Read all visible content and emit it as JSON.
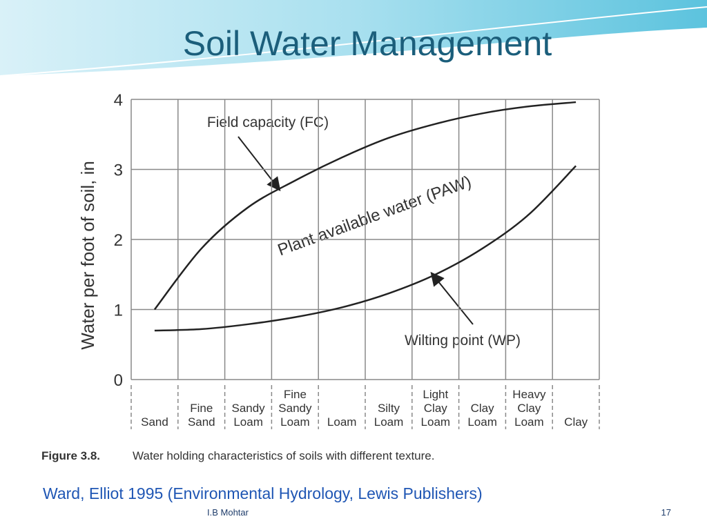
{
  "slide": {
    "title": "Soil Water Management",
    "citation": "Ward, Elliot 1995 (Environmental Hydrology, Lewis Publishers)",
    "author": "I.B Mohtar",
    "page_number": "17"
  },
  "chart_data": {
    "type": "line",
    "ylabel": "Water per foot of soil, in",
    "categories": [
      "Sand",
      "Fine Sand",
      "Sandy Loam",
      "Fine Sandy Loam",
      "Loam",
      "Silty Loam",
      "Light Clay Loam",
      "Clay Loam",
      "Heavy Clay Loam",
      "Clay"
    ],
    "series": [
      {
        "name": "Field capacity (FC)",
        "color": "#222222",
        "values": [
          1.0,
          1.87,
          2.46,
          2.84,
          3.17,
          3.45,
          3.65,
          3.8,
          3.9,
          3.96
        ]
      },
      {
        "name": "Wilting point (WP)",
        "color": "#222222",
        "values": [
          0.7,
          0.72,
          0.79,
          0.89,
          1.03,
          1.23,
          1.5,
          1.87,
          2.36,
          3.05
        ]
      }
    ],
    "annotations": [
      "Plant available water (PAW)"
    ],
    "caption": {
      "label": "Figure 3.8.",
      "text": "Water holding characteristics of soils with different texture."
    },
    "ylim": [
      0,
      4
    ],
    "yticks": [
      0,
      1,
      2,
      3,
      4
    ],
    "grid": true
  }
}
